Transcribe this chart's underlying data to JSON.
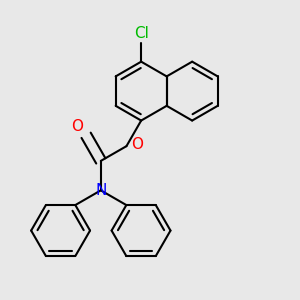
{
  "background_color": "#e8e8e8",
  "bond_color": "#000000",
  "bond_width": 1.5,
  "atom_colors": {
    "Cl": "#00bb00",
    "O": "#ff0000",
    "N": "#0000ff"
  },
  "font_size": 10
}
